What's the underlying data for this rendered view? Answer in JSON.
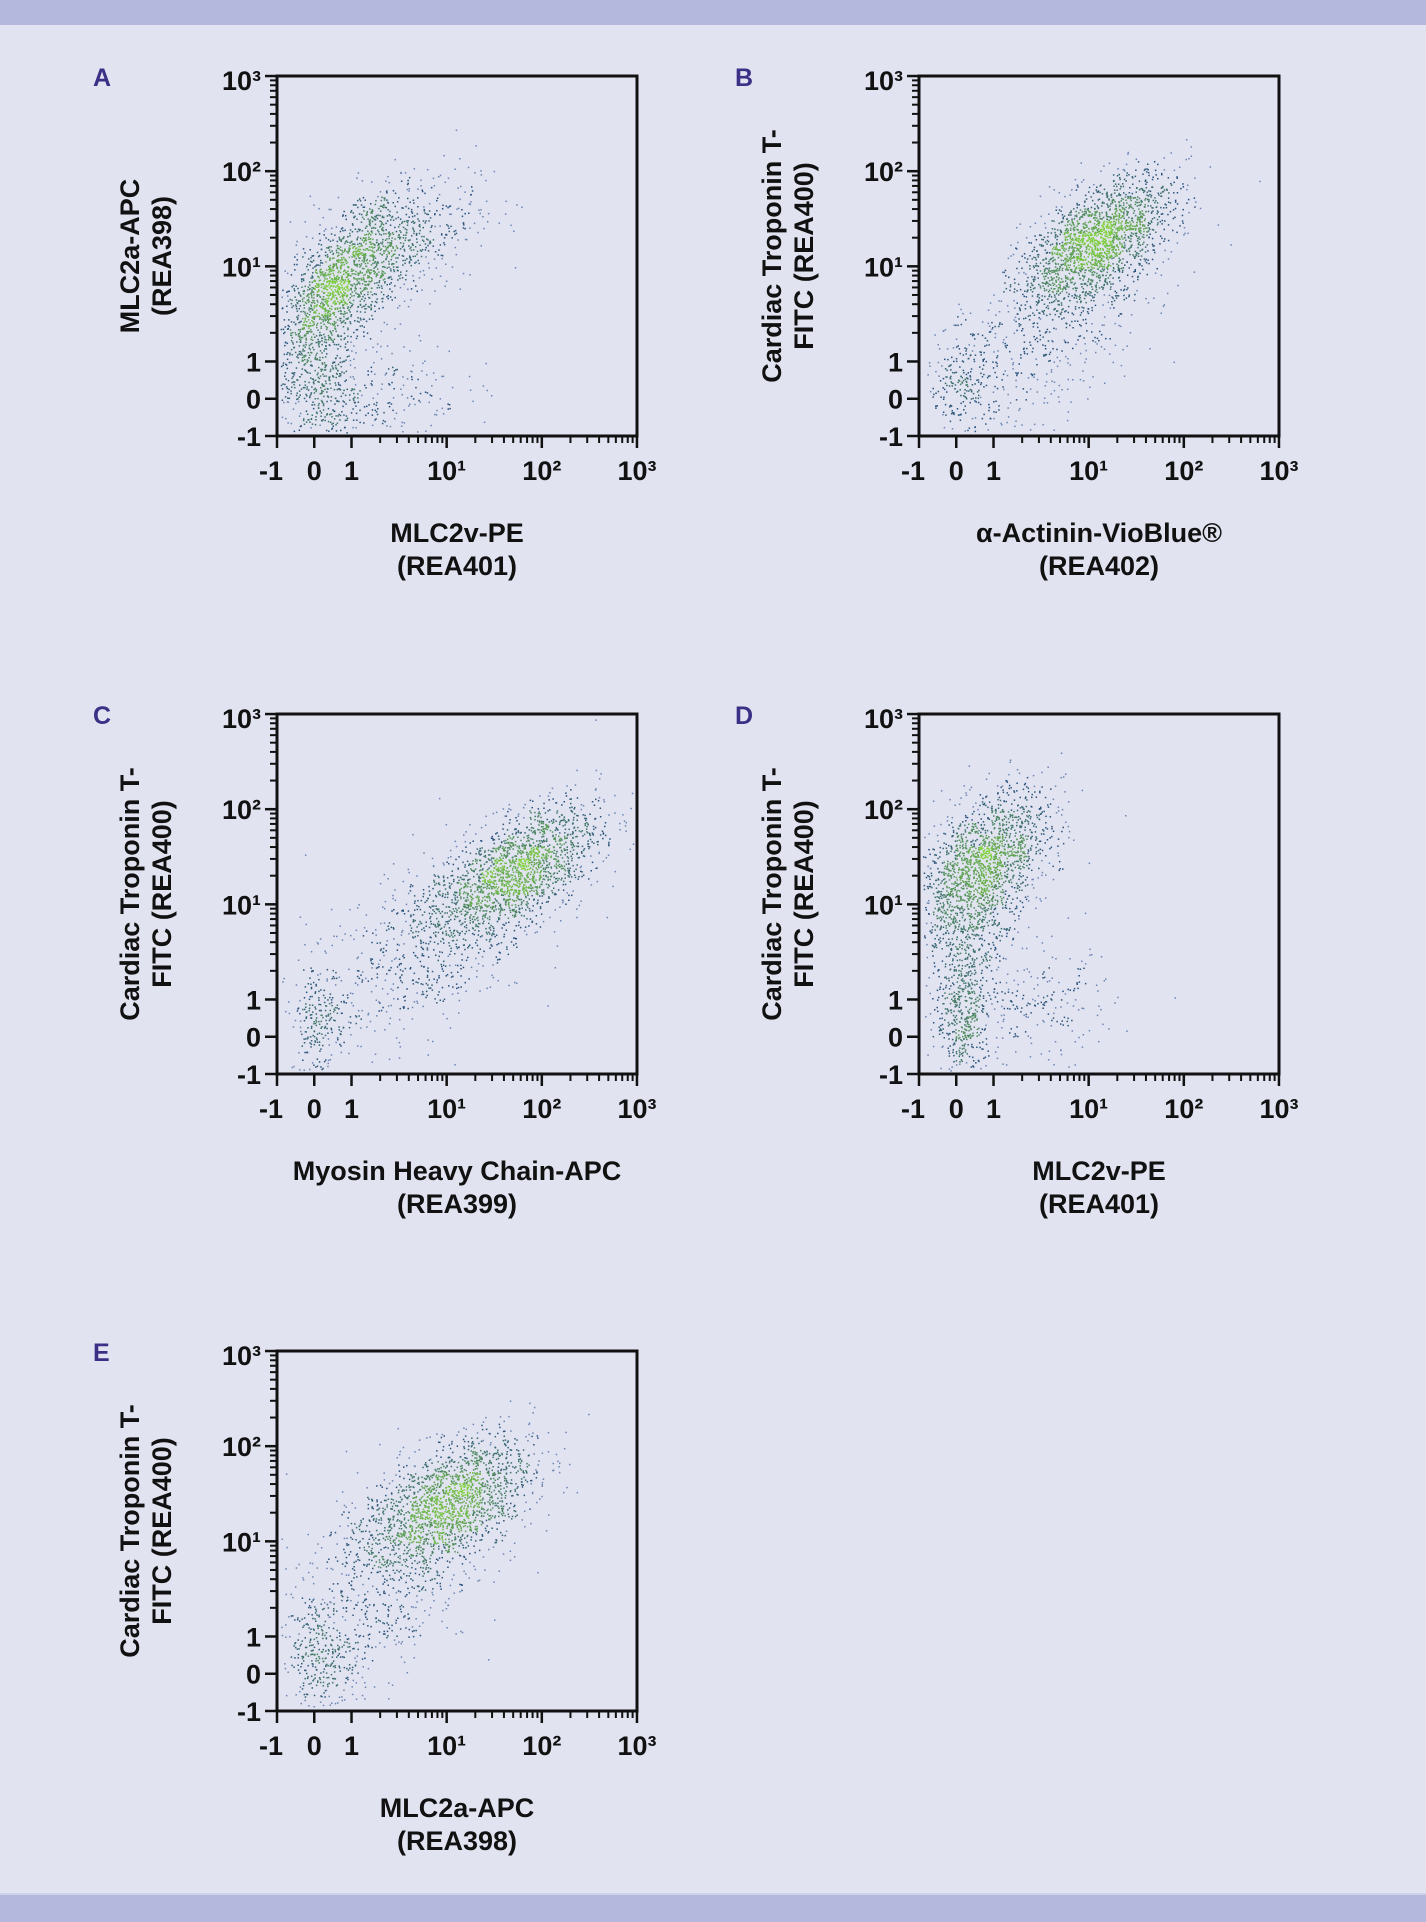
{
  "colors": {
    "background": "#e1e3f1",
    "band": "#b3b8dc",
    "panel_letter": "#3b2f86",
    "low_density": "#1d3f86",
    "high_density": "#7fd23a",
    "axis": "#111111"
  },
  "chart_data": [
    {
      "type": "scatter",
      "panel": "A",
      "xlabel": [
        "MLC2v-PE",
        "(REA401)"
      ],
      "ylabel": [
        "MLC2a-APC",
        "(REA398)"
      ],
      "xscale": "biexponential",
      "yscale": "biexponential",
      "xlim": [
        -1,
        1000
      ],
      "ylim": [
        -1,
        1000
      ],
      "xticks": [
        "-1",
        "0",
        "1",
        "10¹",
        "10²",
        "10³"
      ],
      "yticks": [
        "-1",
        "0",
        "1",
        "10¹",
        "10²",
        "10³"
      ],
      "grid": false,
      "populations": [
        {
          "x": 0.5,
          "y": 5,
          "sx": 0.35,
          "sy": 0.45,
          "rho": 0.7,
          "w": 0.5
        },
        {
          "x": 2,
          "y": 15,
          "sx": 0.5,
          "sy": 0.4,
          "rho": 0.5,
          "w": 0.3
        },
        {
          "x": 0.15,
          "y": 0.2,
          "sx": 0.2,
          "sy": 0.3,
          "rho": 0,
          "w": 0.1
        },
        {
          "x": 1.5,
          "y": 0.3,
          "sx": 0.5,
          "sy": 0.3,
          "rho": 0,
          "w": 0.1
        }
      ]
    },
    {
      "type": "scatter",
      "panel": "B",
      "xlabel": [
        "α-Actinin-VioBlue®",
        "(REA402)"
      ],
      "ylabel": [
        "Cardiac Troponin T-",
        "FITC (REA400)"
      ],
      "xscale": "biexponential",
      "yscale": "biexponential",
      "xlim": [
        -1,
        1000
      ],
      "ylim": [
        -1,
        1000
      ],
      "xticks": [
        "-1",
        "0",
        "1",
        "10¹",
        "10²",
        "10³"
      ],
      "yticks": [
        "-1",
        "0",
        "1",
        "10¹",
        "10²",
        "10³"
      ],
      "grid": false,
      "populations": [
        {
          "x": 12,
          "y": 18,
          "sx": 0.4,
          "sy": 0.35,
          "rho": 0.6,
          "w": 0.75
        },
        {
          "x": 0.2,
          "y": 0.4,
          "sx": 0.2,
          "sy": 0.3,
          "rho": 0,
          "w": 0.1
        },
        {
          "x": 5,
          "y": 2,
          "sx": 0.5,
          "sy": 0.5,
          "rho": 0.5,
          "w": 0.15
        }
      ]
    },
    {
      "type": "scatter",
      "panel": "C",
      "xlabel": [
        "Myosin Heavy Chain-APC",
        "(REA399)"
      ],
      "ylabel": [
        "Cardiac Troponin T-",
        "FITC (REA400)"
      ],
      "xscale": "biexponential",
      "yscale": "biexponential",
      "xlim": [
        -1,
        1000
      ],
      "ylim": [
        -1,
        1000
      ],
      "xticks": [
        "-1",
        "0",
        "1",
        "10¹",
        "10²",
        "10³"
      ],
      "yticks": [
        "-1",
        "0",
        "1",
        "10¹",
        "10²",
        "10³"
      ],
      "grid": false,
      "populations": [
        {
          "x": 50,
          "y": 22,
          "sx": 0.45,
          "sy": 0.35,
          "rho": 0.6,
          "w": 0.7
        },
        {
          "x": 0.1,
          "y": 0.4,
          "sx": 0.15,
          "sy": 0.3,
          "rho": 0,
          "w": 0.08
        },
        {
          "x": 5,
          "y": 3,
          "sx": 0.6,
          "sy": 0.5,
          "rho": 0.5,
          "w": 0.22
        }
      ]
    },
    {
      "type": "scatter",
      "panel": "D",
      "xlabel": [
        "MLC2v-PE",
        "(REA401)"
      ],
      "ylabel": [
        "Cardiac Troponin T-",
        "FITC (REA400)"
      ],
      "xscale": "biexponential",
      "yscale": "biexponential",
      "xlim": [
        -1,
        1000
      ],
      "ylim": [
        -1,
        1000
      ],
      "xticks": [
        "-1",
        "0",
        "1",
        "10¹",
        "10²",
        "10³"
      ],
      "yticks": [
        "-1",
        "0",
        "1",
        "10¹",
        "10²",
        "10³"
      ],
      "grid": false,
      "populations": [
        {
          "x": 0.7,
          "y": 25,
          "sx": 0.35,
          "sy": 0.4,
          "rho": 0.5,
          "w": 0.65
        },
        {
          "x": 0.2,
          "y": 0.5,
          "sx": 0.15,
          "sy": 0.35,
          "rho": 0,
          "w": 0.15
        },
        {
          "x": 3,
          "y": 0.8,
          "sx": 0.4,
          "sy": 0.3,
          "rho": 0,
          "w": 0.08
        },
        {
          "x": 0.4,
          "y": 4,
          "sx": 0.2,
          "sy": 0.4,
          "rho": 0.3,
          "w": 0.12
        }
      ]
    },
    {
      "type": "scatter",
      "panel": "E",
      "xlabel": [
        "MLC2a-APC",
        "(REA398)"
      ],
      "ylabel": [
        "Cardiac Troponin T-",
        "FITC (REA400)"
      ],
      "xscale": "biexponential",
      "yscale": "biexponential",
      "xlim": [
        -1,
        1000
      ],
      "ylim": [
        -1,
        1000
      ],
      "xticks": [
        "-1",
        "0",
        "1",
        "10¹",
        "10²",
        "10³"
      ],
      "yticks": [
        "-1",
        "0",
        "1",
        "10¹",
        "10²",
        "10³"
      ],
      "grid": false,
      "populations": [
        {
          "x": 10,
          "y": 25,
          "sx": 0.45,
          "sy": 0.35,
          "rho": 0.5,
          "w": 0.7
        },
        {
          "x": 0.2,
          "y": 0.4,
          "sx": 0.2,
          "sy": 0.35,
          "rho": 0,
          "w": 0.12
        },
        {
          "x": 2,
          "y": 3,
          "sx": 0.5,
          "sy": 0.5,
          "rho": 0.4,
          "w": 0.18
        }
      ]
    }
  ]
}
